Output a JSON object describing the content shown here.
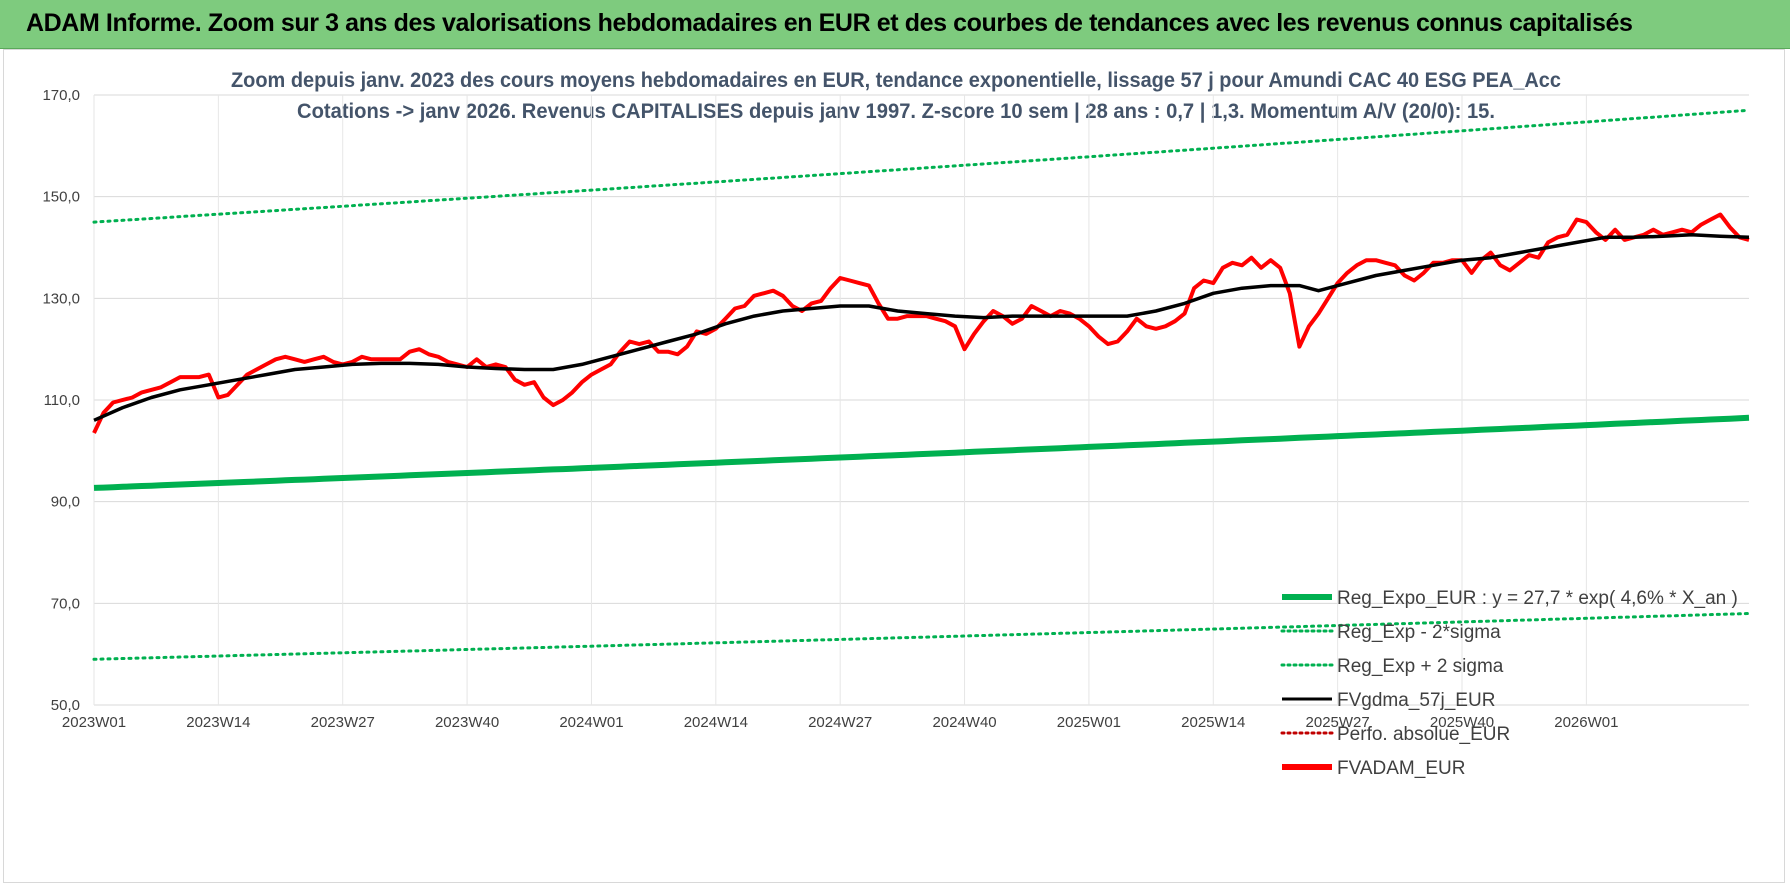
{
  "header": {
    "title": "ADAM Informe. Zoom sur 3 ans des valorisations hebdomadaires en EUR et des courbes de tendances avec les revenus connus capitalisés"
  },
  "colors": {
    "banner": "#7ecb7e",
    "title": "#44546a",
    "reg": "#00b050",
    "sigma": "#00b050",
    "fvgdma": "#000000",
    "fvadam": "#ff0000",
    "perfo": "#c00000",
    "grid": "#d9d9d9"
  },
  "chart_data": {
    "type": "line",
    "title_lines": [
      "Zoom depuis janv. 2023 des cours moyens hebdomadaires en EUR, tendance exponentielle, lissage 57 j pour Amundi CAC 40 ESG PEA_Acc",
      "Cotations -> janv 2026. Revenus CAPITALISES depuis janv 1997. Z-score 10 sem | 28 ans : 0,7 | 1,3. Momentum A/V (20/0): 15."
    ],
    "ylim": [
      50,
      170
    ],
    "yticks": [
      "50,0",
      "70,0",
      "90,0",
      "110,0",
      "130,0",
      "150,0",
      "170,0"
    ],
    "ytick_values": [
      50,
      70,
      90,
      110,
      130,
      150,
      170
    ],
    "x_count": 161,
    "xtick_labels": [
      "2023W01",
      "2023W14",
      "2023W27",
      "2023W40",
      "2024W01",
      "2024W14",
      "2024W27",
      "2024W40",
      "2025W01",
      "2025W14",
      "2025W27",
      "2025W40",
      "2026W01"
    ],
    "xtick_indices": [
      0,
      13,
      26,
      39,
      52,
      65,
      78,
      91,
      104,
      117,
      130,
      143,
      156
    ],
    "legend": [
      {
        "key": "reg",
        "label": "Reg_Expo_EUR : y = 27,7 * exp( 4,6% *  X_an )",
        "style": "thick",
        "color": "#00b050"
      },
      {
        "key": "lower",
        "label": "Reg_Exp - 2*sigma",
        "style": "dotted",
        "color": "#00b050"
      },
      {
        "key": "upper",
        "label": "Reg_Exp + 2 sigma",
        "style": "dotted",
        "color": "#00b050"
      },
      {
        "key": "fvgdma",
        "label": "FVgdma_57j_EUR",
        "style": "solid",
        "color": "#000000"
      },
      {
        "key": "perfo",
        "label": "Perfo. absolue_EUR",
        "style": "dotted",
        "color": "#c00000"
      },
      {
        "key": "fvadam",
        "label": "FVADAM_EUR",
        "style": "thick",
        "color": "#ff0000"
      }
    ],
    "series_endpoints": {
      "reg": {
        "start": 92.7,
        "end": 106.5
      },
      "upper": {
        "start": 145.0,
        "end": 167.0
      },
      "lower": {
        "start": 59.0,
        "end": 68.0
      }
    },
    "fvadam_keypoints": [
      [
        0,
        103.5
      ],
      [
        1,
        107.5
      ],
      [
        2,
        109.5
      ],
      [
        4,
        110.5
      ],
      [
        5,
        111.5
      ],
      [
        7,
        112.5
      ],
      [
        8,
        113.5
      ],
      [
        9,
        114.5
      ],
      [
        10,
        114.5
      ],
      [
        11,
        114.5
      ],
      [
        12,
        115
      ],
      [
        13,
        110.5
      ],
      [
        14,
        111
      ],
      [
        15,
        113
      ],
      [
        16,
        115
      ],
      [
        17,
        116
      ],
      [
        18,
        117
      ],
      [
        19,
        118
      ],
      [
        20,
        118.5
      ],
      [
        21,
        118
      ],
      [
        22,
        117.5
      ],
      [
        23,
        118
      ],
      [
        24,
        118.5
      ],
      [
        25,
        117.5
      ],
      [
        26,
        117
      ],
      [
        27,
        117.5
      ],
      [
        28,
        118.5
      ],
      [
        29,
        118
      ],
      [
        30,
        118
      ],
      [
        31,
        118
      ],
      [
        32,
        118
      ],
      [
        33,
        119.5
      ],
      [
        34,
        120
      ],
      [
        35,
        119
      ],
      [
        36,
        118.5
      ],
      [
        37,
        117.5
      ],
      [
        38,
        117
      ],
      [
        39,
        116.5
      ],
      [
        40,
        118
      ],
      [
        41,
        116.5
      ],
      [
        42,
        117
      ],
      [
        43,
        116.5
      ],
      [
        44,
        114
      ],
      [
        45,
        113
      ],
      [
        46,
        113.5
      ],
      [
        47,
        110.5
      ],
      [
        48,
        109
      ],
      [
        49,
        110
      ],
      [
        50,
        111.5
      ],
      [
        51,
        113.5
      ],
      [
        52,
        115
      ],
      [
        53,
        116
      ],
      [
        54,
        117
      ],
      [
        55,
        119.5
      ],
      [
        56,
        121.5
      ],
      [
        57,
        121
      ],
      [
        58,
        121.5
      ],
      [
        59,
        119.5
      ],
      [
        60,
        119.5
      ],
      [
        61,
        119
      ],
      [
        62,
        120.5
      ],
      [
        63,
        123.5
      ],
      [
        64,
        123
      ],
      [
        65,
        124
      ],
      [
        66,
        126
      ],
      [
        67,
        128
      ],
      [
        68,
        128.5
      ],
      [
        69,
        130.5
      ],
      [
        70,
        131
      ],
      [
        71,
        131.5
      ],
      [
        72,
        130.5
      ],
      [
        73,
        128.5
      ],
      [
        74,
        127.5
      ],
      [
        75,
        129
      ],
      [
        76,
        129.5
      ],
      [
        77,
        132
      ],
      [
        78,
        134
      ],
      [
        79,
        133.5
      ],
      [
        80,
        133
      ],
      [
        81,
        132.5
      ],
      [
        82,
        129
      ],
      [
        83,
        126
      ],
      [
        84,
        126
      ],
      [
        85,
        126.5
      ],
      [
        86,
        126.5
      ],
      [
        87,
        126.5
      ],
      [
        88,
        126
      ],
      [
        89,
        125.5
      ],
      [
        90,
        124.5
      ],
      [
        91,
        120
      ],
      [
        92,
        123
      ],
      [
        93,
        125.5
      ],
      [
        94,
        127.5
      ],
      [
        95,
        126.5
      ],
      [
        96,
        125
      ],
      [
        97,
        126
      ],
      [
        98,
        128.5
      ],
      [
        99,
        127.5
      ],
      [
        100,
        126.5
      ],
      [
        101,
        127.5
      ],
      [
        102,
        127
      ],
      [
        103,
        126
      ],
      [
        104,
        124.5
      ],
      [
        105,
        122.5
      ],
      [
        106,
        121
      ],
      [
        107,
        121.5
      ],
      [
        108,
        123.5
      ],
      [
        109,
        126
      ],
      [
        110,
        124.5
      ],
      [
        111,
        124
      ],
      [
        112,
        124.5
      ],
      [
        113,
        125.5
      ],
      [
        114,
        127
      ],
      [
        115,
        132
      ],
      [
        116,
        133.5
      ],
      [
        117,
        133
      ],
      [
        118,
        136
      ],
      [
        119,
        137
      ],
      [
        120,
        136.5
      ],
      [
        121,
        138
      ],
      [
        122,
        136
      ],
      [
        123,
        137.5
      ],
      [
        124,
        136
      ],
      [
        125,
        131
      ],
      [
        126,
        120.5
      ],
      [
        127,
        124.5
      ],
      [
        128,
        127
      ],
      [
        129,
        130
      ],
      [
        130,
        133
      ],
      [
        131,
        135
      ],
      [
        132,
        136.5
      ],
      [
        133,
        137.5
      ],
      [
        134,
        137.5
      ],
      [
        135,
        137
      ],
      [
        136,
        136.5
      ],
      [
        137,
        134.5
      ],
      [
        138,
        133.5
      ],
      [
        139,
        135
      ],
      [
        140,
        137
      ],
      [
        141,
        137
      ],
      [
        142,
        137.5
      ],
      [
        143,
        137.5
      ],
      [
        144,
        135
      ],
      [
        145,
        137.5
      ],
      [
        146,
        139
      ],
      [
        147,
        136.5
      ],
      [
        148,
        135.5
      ],
      [
        149,
        137
      ],
      [
        150,
        138.5
      ],
      [
        151,
        138
      ],
      [
        152,
        141
      ],
      [
        153,
        142
      ],
      [
        154,
        142.5
      ],
      [
        155,
        145.5
      ],
      [
        156,
        145
      ],
      [
        157,
        143
      ],
      [
        158,
        141.5
      ],
      [
        159,
        143.5
      ],
      [
        160,
        141.5
      ],
      [
        161,
        142
      ],
      [
        162,
        142.5
      ],
      [
        163,
        143.5
      ],
      [
        164,
        142.5
      ],
      [
        165,
        143
      ],
      [
        166,
        143.5
      ],
      [
        167,
        143
      ],
      [
        168,
        144.5
      ],
      [
        169,
        145.5
      ],
      [
        170,
        146.5
      ],
      [
        171,
        144
      ],
      [
        172,
        142
      ],
      [
        173,
        141.5
      ]
    ],
    "fvgdma_keypoints": [
      [
        0,
        106
      ],
      [
        3,
        108.5
      ],
      [
        6,
        110.5
      ],
      [
        9,
        112
      ],
      [
        12,
        113
      ],
      [
        15,
        114
      ],
      [
        18,
        115
      ],
      [
        21,
        116
      ],
      [
        24,
        116.5
      ],
      [
        27,
        117
      ],
      [
        30,
        117.2
      ],
      [
        33,
        117.2
      ],
      [
        36,
        117
      ],
      [
        39,
        116.5
      ],
      [
        42,
        116.2
      ],
      [
        45,
        116
      ],
      [
        48,
        116
      ],
      [
        51,
        117
      ],
      [
        54,
        118.5
      ],
      [
        57,
        120
      ],
      [
        60,
        121.5
      ],
      [
        63,
        123
      ],
      [
        66,
        125
      ],
      [
        69,
        126.5
      ],
      [
        72,
        127.5
      ],
      [
        75,
        128
      ],
      [
        78,
        128.5
      ],
      [
        81,
        128.5
      ],
      [
        84,
        127.5
      ],
      [
        87,
        127
      ],
      [
        90,
        126.5
      ],
      [
        93,
        126.2
      ],
      [
        96,
        126.5
      ],
      [
        99,
        126.5
      ],
      [
        102,
        126.5
      ],
      [
        105,
        126.5
      ],
      [
        108,
        126.5
      ],
      [
        111,
        127.5
      ],
      [
        114,
        129
      ],
      [
        117,
        131
      ],
      [
        120,
        132
      ],
      [
        123,
        132.5
      ],
      [
        126,
        132.5
      ],
      [
        128,
        131.5
      ],
      [
        131,
        133
      ],
      [
        134,
        134.5
      ],
      [
        137,
        135.5
      ],
      [
        140,
        136.5
      ],
      [
        143,
        137.5
      ],
      [
        146,
        138
      ],
      [
        149,
        139
      ],
      [
        152,
        140
      ],
      [
        155,
        141
      ],
      [
        158,
        142
      ],
      [
        161,
        142
      ],
      [
        164,
        142.2
      ],
      [
        167,
        142.5
      ],
      [
        170,
        142.2
      ],
      [
        173,
        142
      ]
    ]
  }
}
